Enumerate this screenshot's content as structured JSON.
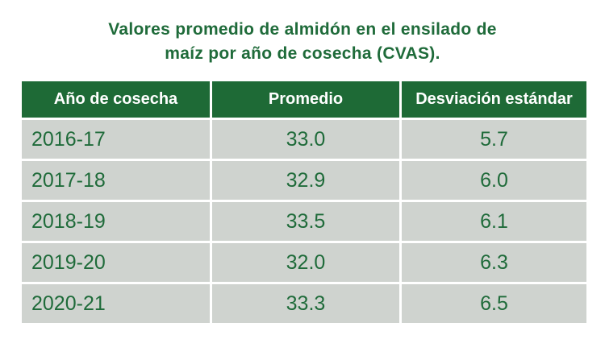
{
  "title_lines": [
    "Valores promedio de almidón en el ensilado de",
    "maíz por año de cosecha (CVAS)."
  ],
  "chart_data": {
    "type": "table",
    "title": "Valores promedio de almidón en el ensilado de maíz por año de cosecha (CVAS).",
    "columns": [
      "Año de cosecha",
      "Promedio",
      "Desviación estándar"
    ],
    "rows": [
      [
        "2016-17",
        "33.0",
        "5.7"
      ],
      [
        "2017-18",
        "32.9",
        "6.0"
      ],
      [
        "2018-19",
        "33.5",
        "6.1"
      ],
      [
        "2019-20",
        "32.0",
        "6.3"
      ],
      [
        "2020-21",
        "33.3",
        "6.5"
      ]
    ]
  },
  "colors": {
    "header_bg": "#1e6a36",
    "header_text": "#ffffff",
    "cell_bg": "#cfd3cf",
    "text_green": "#1f6b3a"
  }
}
